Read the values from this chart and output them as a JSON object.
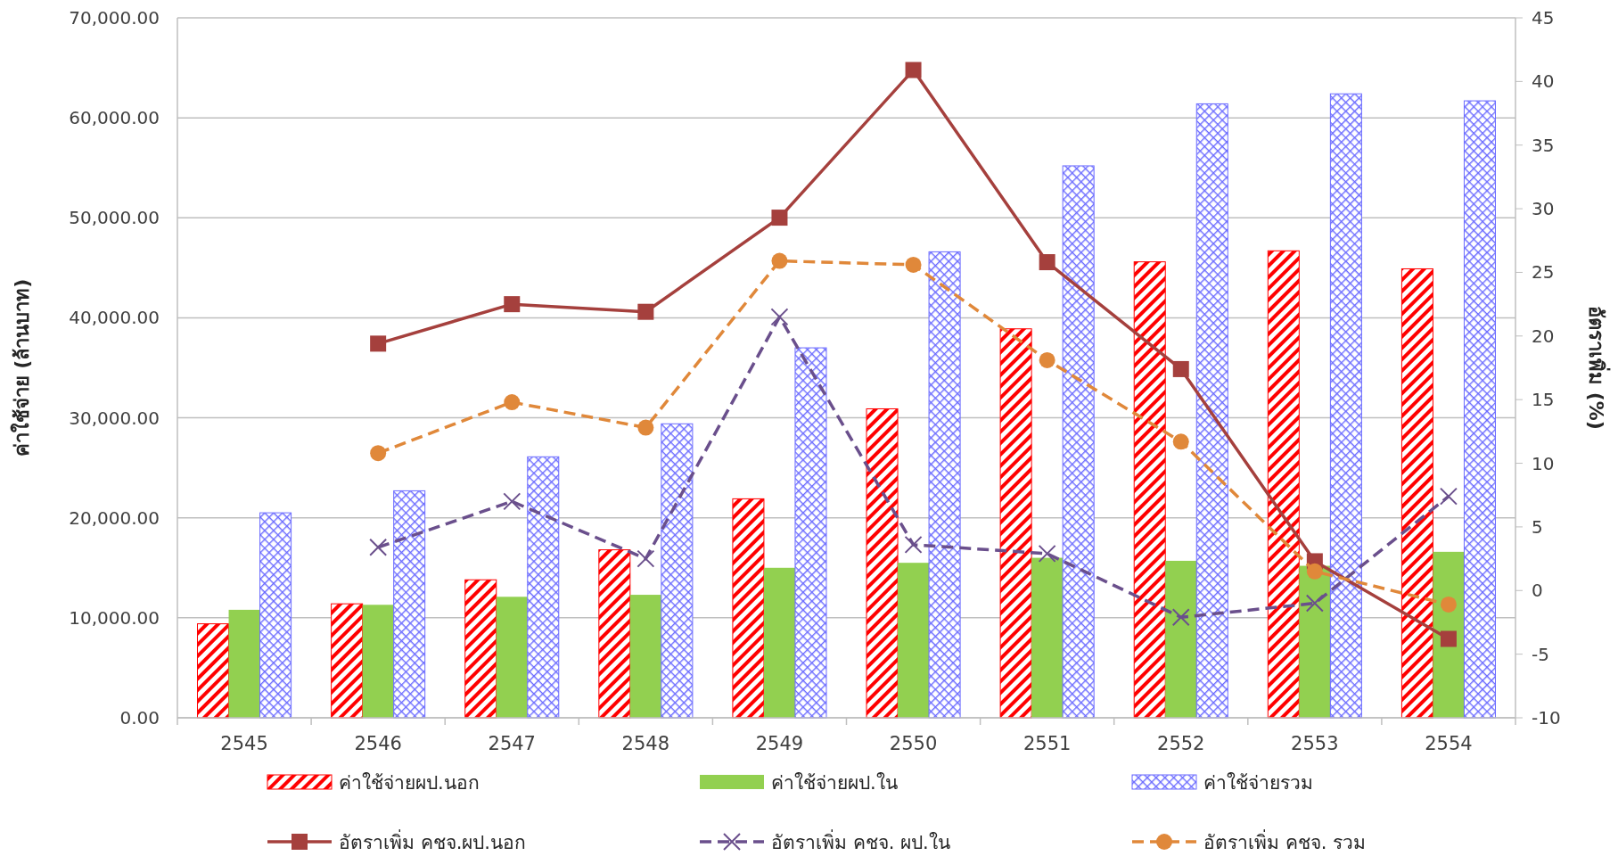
{
  "chart_data": {
    "type": "bar",
    "ylabel": "ค่าใช้จ่าย (ล้านบาท)",
    "y2label": "อัตราเพิ่ม (%)",
    "categories": [
      "2545",
      "2546",
      "2547",
      "2548",
      "2549",
      "2550",
      "2551",
      "2552",
      "2553",
      "2554"
    ],
    "ylim": [
      0,
      70000
    ],
    "yticks": [
      {
        "value": 0,
        "label": "0.00"
      },
      {
        "value": 10000,
        "label": "10,000.00"
      },
      {
        "value": 20000,
        "label": "20,000.00"
      },
      {
        "value": 30000,
        "label": "30,000.00"
      },
      {
        "value": 40000,
        "label": "40,000.00"
      },
      {
        "value": 50000,
        "label": "50,000.00"
      },
      {
        "value": 60000,
        "label": "60,000.00"
      },
      {
        "value": 70000,
        "label": "70,000.00"
      }
    ],
    "y2lim": [
      -10,
      45
    ],
    "y2ticks": [
      -10,
      -5,
      0,
      5,
      10,
      15,
      20,
      25,
      30,
      35,
      40,
      45
    ],
    "grid": "y",
    "legend": "bottom",
    "series": [
      {
        "name": "ค่าใช้จ่ายผป.นอก",
        "color": "#ff0000",
        "values": [
          9400,
          11400,
          13800,
          16800,
          21900,
          30900,
          38900,
          45600,
          46700,
          44900
        ]
      },
      {
        "name": "ค่าใช้จ่ายผป.ใน",
        "color": "#92d050",
        "values": [
          10800,
          11300,
          12100,
          12300,
          15000,
          15500,
          16000,
          15700,
          15200,
          16600
        ]
      },
      {
        "name": "ค่าใช้จ่ายรวม",
        "color": "#6b6bff",
        "values": [
          20500,
          22700,
          26100,
          29400,
          37000,
          46600,
          55200,
          61400,
          62400,
          61700
        ]
      },
      {
        "name": "อัตราเพิ่ม คชจ.ผป.นอก",
        "type": "line",
        "axis": "y2",
        "color": "#a5403d",
        "marker": "square",
        "line_style": "solid",
        "values": [
          null,
          19.4,
          22.5,
          21.9,
          29.3,
          40.9,
          25.8,
          17.4,
          2.3,
          -3.8
        ]
      },
      {
        "name": "อัตราเพิ่ม คชจ. ผป.ใน",
        "type": "line",
        "axis": "y2",
        "color": "#6a4f8c",
        "marker": "cross",
        "line_style": "dashed",
        "values": [
          null,
          3.4,
          7.0,
          2.5,
          21.5,
          3.6,
          2.9,
          -2.1,
          -1.0,
          7.4
        ]
      },
      {
        "name": "อัตราเพิ่ม คชจ. รวม",
        "type": "line",
        "axis": "y2",
        "color": "#e0883a",
        "marker": "circle",
        "line_style": "dashed",
        "values": [
          null,
          10.8,
          14.8,
          12.8,
          25.9,
          25.6,
          18.1,
          11.7,
          1.5,
          -1.1
        ]
      }
    ]
  }
}
